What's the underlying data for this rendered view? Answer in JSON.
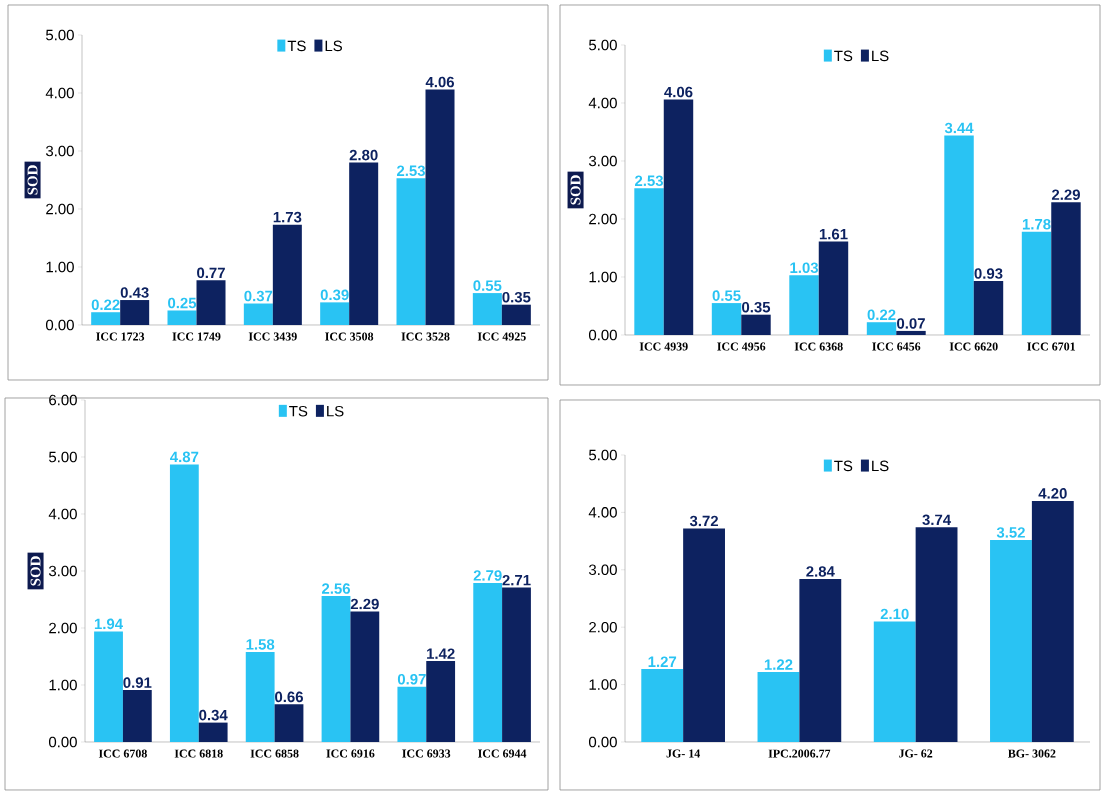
{
  "chart_data": [
    {
      "type": "bar",
      "categories": [
        "ICC 1723",
        "ICC 1749",
        "ICC 3439",
        "ICC 3508",
        "ICC 3528",
        "ICC 4925"
      ],
      "ylabel": "SOD",
      "ylim": [
        0,
        5
      ],
      "yticks": [
        {
          "value": 0,
          "label": "0.00"
        },
        {
          "value": 1,
          "label": "1.00"
        },
        {
          "value": 2,
          "label": "2.00"
        },
        {
          "value": 3,
          "label": "3.00"
        },
        {
          "value": 4,
          "label": "4.00"
        },
        {
          "value": 5,
          "label": "5.00"
        }
      ],
      "legend": "top",
      "grid": false,
      "series": [
        {
          "name": "TS",
          "color": "#29c3f3",
          "values": [
            0.22,
            0.25,
            0.37,
            0.39,
            2.53,
            0.55
          ],
          "value_labels": [
            "0.22",
            "0.25",
            "0.37",
            "0.39",
            "2.53",
            "0.55"
          ]
        },
        {
          "name": "LS",
          "color": "#0d2260",
          "values": [
            0.43,
            0.77,
            1.73,
            2.8,
            4.06,
            0.35
          ],
          "value_labels": [
            "0.43",
            "0.77",
            "1.73",
            "2.80",
            "4.06",
            "0.35"
          ]
        }
      ]
    },
    {
      "type": "bar",
      "categories": [
        "ICC 4939",
        "ICC 4956",
        "ICC 6368",
        "ICC 6456",
        "ICC 6620",
        "ICC 6701"
      ],
      "ylabel": "SOD",
      "ylim": [
        0,
        5
      ],
      "yticks": [
        {
          "value": 0,
          "label": "0.00"
        },
        {
          "value": 1,
          "label": "1.00"
        },
        {
          "value": 2,
          "label": "2.00"
        },
        {
          "value": 3,
          "label": "3.00"
        },
        {
          "value": 4,
          "label": "4.00"
        },
        {
          "value": 5,
          "label": "5.00"
        }
      ],
      "legend": "top",
      "grid": false,
      "series": [
        {
          "name": "TS",
          "color": "#29c3f3",
          "values": [
            2.53,
            0.55,
            1.03,
            0.22,
            3.44,
            1.78
          ],
          "value_labels": [
            "2.53",
            "0.55",
            "1.03",
            "0.22",
            "3.44",
            "1.78"
          ]
        },
        {
          "name": "LS",
          "color": "#0d2260",
          "values": [
            4.06,
            0.35,
            1.61,
            0.07,
            0.93,
            2.29
          ],
          "value_labels": [
            "4.06",
            "0.35",
            "1.61",
            "0.07",
            "0.93",
            "2.29"
          ]
        }
      ]
    },
    {
      "type": "bar",
      "categories": [
        "ICC 6708",
        "ICC 6818",
        "ICC 6858",
        "ICC 6916",
        "ICC 6933",
        "ICC 6944"
      ],
      "ylabel": "SOD",
      "ylim": [
        0,
        6
      ],
      "yticks": [
        {
          "value": 0,
          "label": "0.00"
        },
        {
          "value": 1,
          "label": "1.00"
        },
        {
          "value": 2,
          "label": "2.00"
        },
        {
          "value": 3,
          "label": "3.00"
        },
        {
          "value": 4,
          "label": "4.00"
        },
        {
          "value": 5,
          "label": "5.00"
        },
        {
          "value": 6,
          "label": "6.00"
        }
      ],
      "legend": "top",
      "grid": false,
      "series": [
        {
          "name": "TS",
          "color": "#29c3f3",
          "values": [
            1.94,
            4.87,
            1.58,
            2.56,
            0.97,
            2.79
          ],
          "value_labels": [
            "1.94",
            "4.87",
            "1.58",
            "2.56",
            "0.97",
            "2.79"
          ]
        },
        {
          "name": "LS",
          "color": "#0d2260",
          "values": [
            0.91,
            0.34,
            0.66,
            2.29,
            1.42,
            2.71
          ],
          "value_labels": [
            "0.91",
            "0.34",
            "0.66",
            "2.29",
            "1.42",
            "2.71"
          ]
        }
      ]
    },
    {
      "type": "bar",
      "categories": [
        "JG- 14",
        "IPC.2006.77",
        "JG- 62",
        "BG- 3062"
      ],
      "ylim": [
        0,
        5
      ],
      "yticks": [
        {
          "value": 0,
          "label": "0.00"
        },
        {
          "value": 1,
          "label": "1.00"
        },
        {
          "value": 2,
          "label": "2.00"
        },
        {
          "value": 3,
          "label": "3.00"
        },
        {
          "value": 4,
          "label": "4.00"
        },
        {
          "value": 5,
          "label": "5.00"
        }
      ],
      "legend": "top",
      "grid": false,
      "series": [
        {
          "name": "TS",
          "color": "#29c3f3",
          "values": [
            1.27,
            1.22,
            2.1,
            3.52
          ],
          "value_labels": [
            "1.27",
            "1.22",
            "2.10",
            "3.52"
          ]
        },
        {
          "name": "LS",
          "color": "#0d2260",
          "values": [
            3.72,
            2.84,
            3.74,
            4.2
          ],
          "value_labels": [
            "3.72",
            "2.84",
            "3.74",
            "4.20"
          ]
        }
      ]
    }
  ]
}
